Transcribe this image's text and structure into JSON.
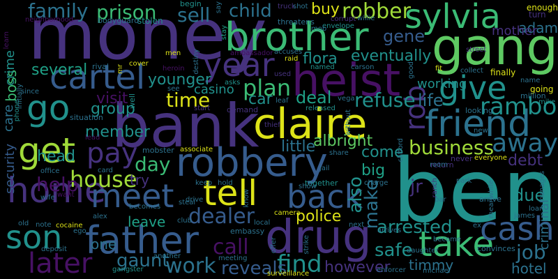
{
  "palette": {
    "purple": "#471164",
    "indigo": "#46327e",
    "blue": "#365c8d",
    "teal_blue": "#2c728e",
    "teal": "#21918c",
    "green_teal": "#1fa187",
    "green": "#3bbb75",
    "lime": "#5ec962",
    "yellow_green": "#a0da39",
    "yellow": "#dde318"
  },
  "words": [
    {
      "text": "money"
    },
    {
      "text": "gang"
    },
    {
      "text": "bank"
    },
    {
      "text": "ben"
    },
    {
      "text": "brother"
    },
    {
      "text": "claire"
    },
    {
      "text": "heist"
    },
    {
      "text": "drug"
    },
    {
      "text": "robbery"
    },
    {
      "text": "father"
    },
    {
      "text": "friend"
    },
    {
      "text": "sylvia"
    },
    {
      "text": "take"
    },
    {
      "text": "tell"
    },
    {
      "text": "back"
    },
    {
      "text": "home"
    },
    {
      "text": "son"
    },
    {
      "text": "cartel"
    },
    {
      "text": "get"
    },
    {
      "text": "meet"
    },
    {
      "text": "year"
    },
    {
      "text": "give"
    },
    {
      "text": "go"
    },
    {
      "text": "later"
    },
    {
      "text": "cash"
    },
    {
      "text": "pay"
    },
    {
      "text": "rambo"
    },
    {
      "text": "family"
    },
    {
      "text": "prison"
    },
    {
      "text": "child"
    },
    {
      "text": "robber"
    },
    {
      "text": "sell"
    },
    {
      "text": "plan"
    },
    {
      "text": "rob"
    },
    {
      "text": "time"
    },
    {
      "text": "house"
    },
    {
      "text": "dealer"
    },
    {
      "text": "arrested"
    },
    {
      "text": "business"
    },
    {
      "text": "away"
    },
    {
      "text": "work"
    },
    {
      "text": "find"
    },
    {
      "text": "help"
    },
    {
      "text": "day"
    },
    {
      "text": "job"
    },
    {
      "text": "call"
    },
    {
      "text": "reveals"
    },
    {
      "text": "gaunt"
    },
    {
      "text": "police"
    },
    {
      "text": "safe"
    },
    {
      "text": "refuse"
    },
    {
      "text": "life"
    },
    {
      "text": "deal"
    },
    {
      "text": "car"
    },
    {
      "text": "flora"
    },
    {
      "text": "gene"
    },
    {
      "text": "buy"
    },
    {
      "text": "eventually"
    },
    {
      "text": "several"
    },
    {
      "text": "younger"
    },
    {
      "text": "group"
    },
    {
      "text": "member"
    },
    {
      "text": "head"
    },
    {
      "text": "visit"
    },
    {
      "text": "little"
    },
    {
      "text": "albright"
    },
    {
      "text": "come"
    },
    {
      "text": "big"
    },
    {
      "text": "also"
    },
    {
      "text": "make"
    },
    {
      "text": "jr"
    },
    {
      "text": "timmy"
    },
    {
      "text": "however"
    },
    {
      "text": "hotel"
    },
    {
      "text": "due"
    },
    {
      "text": "debt"
    },
    {
      "text": "adam"
    },
    {
      "text": "mother"
    },
    {
      "text": "working"
    },
    {
      "text": "criminal"
    },
    {
      "text": "boss"
    },
    {
      "text": "crime"
    },
    {
      "text": "security"
    },
    {
      "text": "care"
    },
    {
      "text": "try"
    },
    {
      "text": "leave"
    },
    {
      "text": "one"
    },
    {
      "text": "casino"
    },
    {
      "text": "enough"
    },
    {
      "text": "finally"
    },
    {
      "text": "turn"
    },
    {
      "text": "going"
    },
    {
      "text": "million"
    },
    {
      "text": "mike"
    },
    {
      "text": "looking"
    },
    {
      "text": "name"
    },
    {
      "text": "stolen"
    },
    {
      "text": "bodyguard"
    },
    {
      "text": "neighborhood"
    },
    {
      "text": "learn"
    },
    {
      "text": "begin"
    },
    {
      "text": "say"
    },
    {
      "text": "stay"
    },
    {
      "text": "truck"
    },
    {
      "text": "shot"
    },
    {
      "text": "envelope"
    },
    {
      "text": "corrupt"
    },
    {
      "text": "willie"
    },
    {
      "text": "mob"
    },
    {
      "text": "threatens"
    },
    {
      "text": "destiny"
    },
    {
      "text": "men"
    },
    {
      "text": "ambassador"
    },
    {
      "text": "accuses"
    },
    {
      "text": "raid"
    },
    {
      "text": "named"
    },
    {
      "text": "carson"
    },
    {
      "text": "used"
    },
    {
      "text": "good"
    },
    {
      "text": "fit"
    },
    {
      "text": "collect"
    },
    {
      "text": "street"
    },
    {
      "text": "rival"
    },
    {
      "text": "cover"
    },
    {
      "text": "heroin"
    },
    {
      "text": "mr"
    },
    {
      "text": "asks"
    },
    {
      "text": "see"
    },
    {
      "text": "well"
    },
    {
      "text": "initially"
    },
    {
      "text": "since"
    },
    {
      "text": "phone"
    },
    {
      "text": "situation"
    },
    {
      "text": "lead"
    },
    {
      "text": "start"
    },
    {
      "text": "demand"
    },
    {
      "text": "leaf"
    },
    {
      "text": "vega"
    },
    {
      "text": "released"
    },
    {
      "text": "thief"
    },
    {
      "text": "without"
    },
    {
      "text": "new"
    },
    {
      "text": "share"
    },
    {
      "text": "clifford"
    },
    {
      "text": "return"
    },
    {
      "text": "never"
    },
    {
      "text": "everyone"
    },
    {
      "text": "room"
    },
    {
      "text": "jail"
    },
    {
      "text": "office"
    },
    {
      "text": "card"
    },
    {
      "text": "want"
    },
    {
      "text": "wife"
    },
    {
      "text": "mobster"
    },
    {
      "text": "associate"
    },
    {
      "text": "keep"
    },
    {
      "text": "hold"
    },
    {
      "text": "together"
    },
    {
      "text": "charge"
    },
    {
      "text": "park"
    },
    {
      "text": "bar"
    },
    {
      "text": "ranch"
    },
    {
      "text": "arrive"
    },
    {
      "text": "loan"
    },
    {
      "text": "james"
    },
    {
      "text": "manages"
    },
    {
      "text": "meanwhile"
    },
    {
      "text": "steal"
    },
    {
      "text": "becomes"
    },
    {
      "text": "show"
    },
    {
      "text": "drive"
    },
    {
      "text": "club"
    },
    {
      "text": "know"
    },
    {
      "text": "camera"
    },
    {
      "text": "offer"
    },
    {
      "text": "strike"
    },
    {
      "text": "daughter"
    },
    {
      "text": "alex"
    },
    {
      "text": "local"
    },
    {
      "text": "embassy"
    },
    {
      "text": "next"
    },
    {
      "text": "arrives"
    },
    {
      "text": "become"
    },
    {
      "text": "ex"
    },
    {
      "text": "convinces"
    },
    {
      "text": "old"
    },
    {
      "text": "note"
    },
    {
      "text": "cocaine"
    },
    {
      "text": "ego"
    },
    {
      "text": "deposit"
    },
    {
      "text": "another"
    },
    {
      "text": "meeting"
    },
    {
      "text": "surveillance"
    },
    {
      "text": "enforcer"
    },
    {
      "text": "michael"
    },
    {
      "text": "gangster"
    }
  ]
}
